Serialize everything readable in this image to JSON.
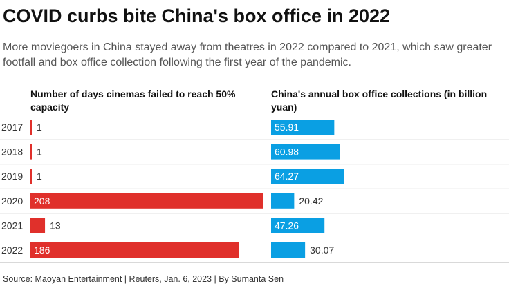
{
  "title": "COVID curbs bite China's box office in 2022",
  "subtitle": "More moviegoers in China stayed away from theatres in 2022 compared to 2021, which saw greater footfall and box office collection following the first year of the pandemic.",
  "source": "Source: Maoyan Entertainment | Reuters, Jan. 6, 2023 | By Sumanta Sen",
  "colors": {
    "left_bar": "#e0302b",
    "right_bar": "#0a9fe3",
    "grid": "#d9d9d9"
  },
  "chart_data": [
    {
      "type": "bar",
      "orientation": "horizontal",
      "title": "Number of days cinemas failed to reach 50% capacity",
      "categories": [
        "2017",
        "2018",
        "2019",
        "2020",
        "2021",
        "2022"
      ],
      "values": [
        1,
        1,
        1,
        208,
        13,
        186
      ],
      "xlim": [
        0,
        208
      ]
    },
    {
      "type": "bar",
      "orientation": "horizontal",
      "title": "China's annual box office collections (in billion yuan)",
      "categories": [
        "2017",
        "2018",
        "2019",
        "2020",
        "2021",
        "2022"
      ],
      "values": [
        55.91,
        60.98,
        64.27,
        20.42,
        47.26,
        30.07
      ],
      "value_labels": [
        "55.91",
        "60.98",
        "64.27",
        "20.42",
        "47.26",
        "30.07"
      ],
      "xlim": [
        0,
        64.27
      ]
    }
  ]
}
